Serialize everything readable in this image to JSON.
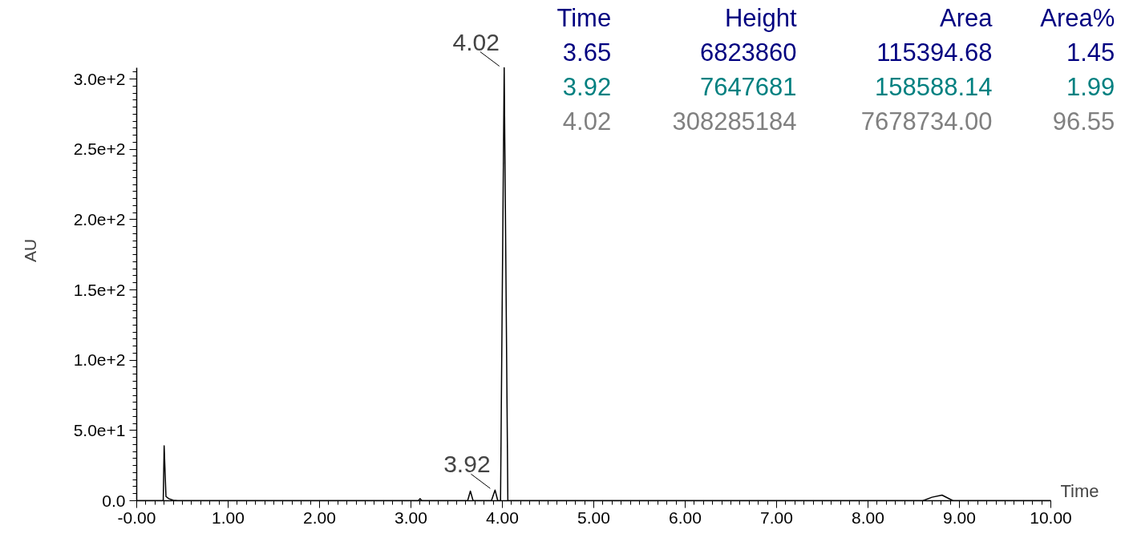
{
  "chart_data": {
    "type": "line",
    "xlabel": "Time",
    "ylabel": "AU",
    "x": [
      0.0,
      0.29,
      0.3,
      0.32,
      0.35,
      0.4,
      0.45,
      3.08,
      3.1,
      3.12,
      3.62,
      3.65,
      3.68,
      3.88,
      3.92,
      3.95,
      3.98,
      4.02,
      4.06,
      8.6,
      8.7,
      8.81,
      8.93,
      10.0
    ],
    "series": [
      {
        "color": "#000000",
        "values": [
          0,
          0,
          39,
          3,
          1.5,
          0.3,
          0,
          0,
          1.5,
          0,
          0,
          6.8,
          0,
          0,
          7.6,
          0,
          0,
          308,
          0,
          0,
          2.5,
          4,
          0,
          0
        ]
      }
    ],
    "xlim": [
      0,
      10
    ],
    "ylim": [
      0,
      308
    ],
    "xticks": [
      {
        "value": 0,
        "label": "-0.00"
      },
      {
        "value": 1,
        "label": "1.00"
      },
      {
        "value": 2,
        "label": "2.00"
      },
      {
        "value": 3,
        "label": "3.00"
      },
      {
        "value": 4,
        "label": "4.00"
      },
      {
        "value": 5,
        "label": "5.00"
      },
      {
        "value": 6,
        "label": "6.00"
      },
      {
        "value": 7,
        "label": "7.00"
      },
      {
        "value": 8,
        "label": "8.00"
      },
      {
        "value": 9,
        "label": "9.00"
      },
      {
        "value": 10,
        "label": "10.00"
      }
    ],
    "yticks": [
      {
        "value": 0,
        "label": "0.0"
      },
      {
        "value": 50,
        "label": "5.0e+1"
      },
      {
        "value": 100,
        "label": "1.0e+2"
      },
      {
        "value": 150,
        "label": "1.5e+2"
      },
      {
        "value": 200,
        "label": "2.0e+2"
      },
      {
        "value": 250,
        "label": "2.5e+2"
      },
      {
        "value": 300,
        "label": "3.0e+2"
      }
    ],
    "grid": false,
    "marker": "none",
    "line_style": "solid",
    "annotations": [
      {
        "text": "4.02",
        "x": 4.02,
        "y": 308
      },
      {
        "text": "3.92",
        "x": 3.92,
        "y": 7.6
      },
      "Time",
      "Height",
      "Area",
      "Area%",
      "3.65",
      "6823860",
      "115394.68",
      "1.45",
      "3.92",
      "7647681",
      "158588.14",
      "1.99",
      "4.02",
      "308285184",
      "7678734.00",
      "96.55"
    ]
  }
}
